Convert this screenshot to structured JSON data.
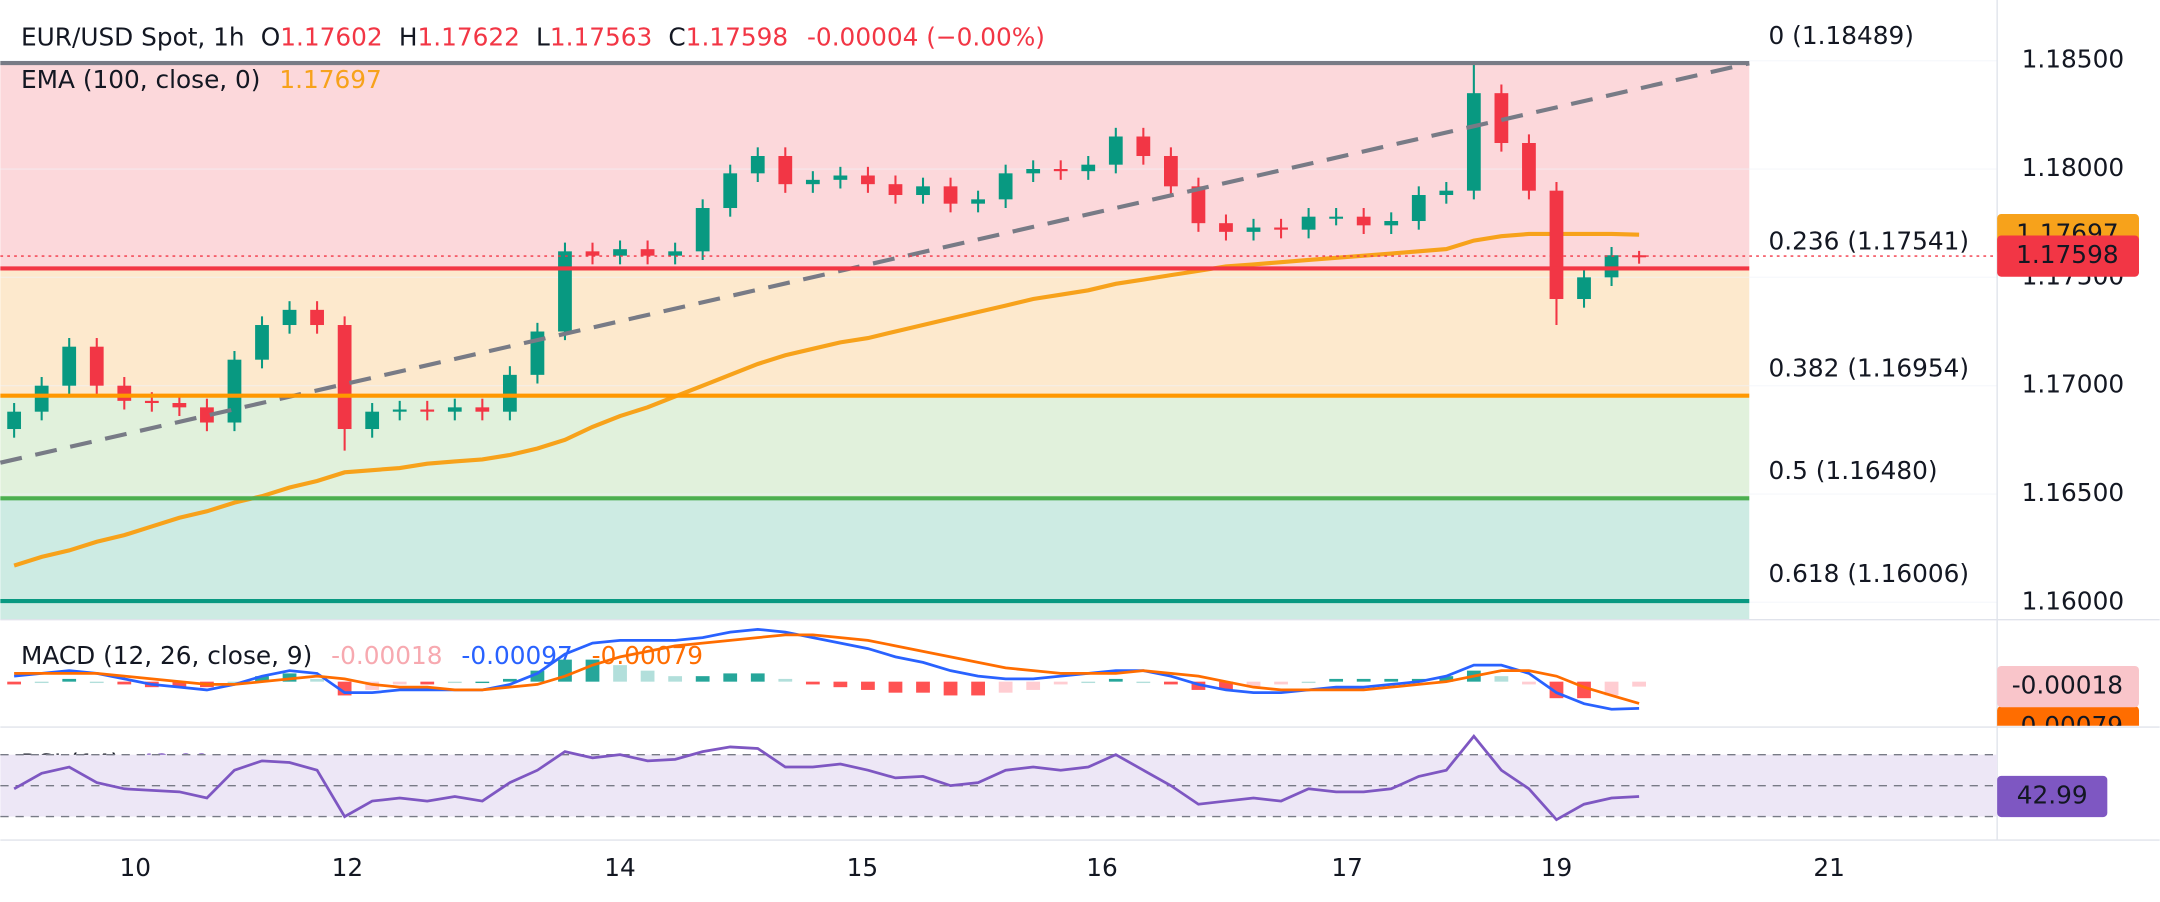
{
  "chart_data": {
    "type": "candlestick",
    "header": {
      "symbol": "EUR/USD Spot, 1h",
      "o": "O",
      "h": "H",
      "l": "L",
      "c": "C",
      "change": "-0.00004 (−0.00%)"
    },
    "xlim": [
      -0.5,
      72
    ],
    "xticks": [
      {
        "value": 4.4,
        "label": "10"
      },
      {
        "value": 12.1,
        "label": "12"
      },
      {
        "value": 22,
        "label": "14"
      },
      {
        "value": 30.8,
        "label": "15"
      },
      {
        "value": 39.5,
        "label": "16"
      },
      {
        "value": 48.4,
        "label": "17"
      },
      {
        "value": 56,
        "label": "19"
      },
      {
        "value": 65.9,
        "label": "21"
      }
    ],
    "ylim": [
      1.1592,
      1.1878
    ],
    "yticks": [
      {
        "value": 1.16,
        "label": "1.16000"
      },
      {
        "value": 1.165,
        "label": "1.16500"
      },
      {
        "value": 1.17,
        "label": "1.17000"
      },
      {
        "value": 1.175,
        "label": "1.17500"
      },
      {
        "value": 1.18,
        "label": "1.18000"
      },
      {
        "value": 1.185,
        "label": "1.18500"
      }
    ],
    "up_color": "#089981",
    "down_color": "#f23645",
    "open": [
      1.168,
      1.1688,
      1.17,
      1.1718,
      1.17,
      1.1693,
      1.1692,
      1.169,
      1.1683,
      1.1712,
      1.1728,
      1.1735,
      1.1728,
      1.168,
      1.1688,
      1.1689,
      1.1688,
      1.169,
      1.1688,
      1.1705,
      1.1725,
      1.1762,
      1.176,
      1.1763,
      1.176,
      1.1762,
      1.1782,
      1.1798,
      1.1806,
      1.1793,
      1.1795,
      1.1797,
      1.1793,
      1.1788,
      1.1792,
      1.1784,
      1.1786,
      1.1798,
      1.18,
      1.1799,
      1.1802,
      1.1815,
      1.1806,
      1.1792,
      1.1775,
      1.1771,
      1.1773,
      1.1772,
      1.1778,
      1.1778,
      1.1774,
      1.1776,
      1.1788,
      1.179,
      1.1835,
      1.1812,
      1.179,
      1.174,
      1.175,
      1.17602
    ],
    "high": [
      1.1692,
      1.1704,
      1.1722,
      1.1722,
      1.1704,
      1.1697,
      1.1696,
      1.1694,
      1.1716,
      1.1732,
      1.1739,
      1.1739,
      1.1732,
      1.1692,
      1.1693,
      1.1693,
      1.1694,
      1.1694,
      1.1709,
      1.1729,
      1.1766,
      1.1766,
      1.1767,
      1.1767,
      1.1766,
      1.1786,
      1.1802,
      1.181,
      1.181,
      1.1799,
      1.1801,
      1.1801,
      1.1797,
      1.1796,
      1.1796,
      1.179,
      1.1802,
      1.1804,
      1.1804,
      1.1806,
      1.1819,
      1.1819,
      1.181,
      1.1796,
      1.1779,
      1.1777,
      1.1777,
      1.1782,
      1.1782,
      1.1782,
      1.178,
      1.1792,
      1.1794,
      1.18489,
      1.1839,
      1.1816,
      1.1794,
      1.1754,
      1.1764,
      1.17622
    ],
    "low": [
      1.1676,
      1.1684,
      1.1696,
      1.1696,
      1.1689,
      1.1688,
      1.1686,
      1.1679,
      1.1679,
      1.1708,
      1.1724,
      1.1724,
      1.167,
      1.1676,
      1.1684,
      1.1684,
      1.1684,
      1.1684,
      1.1684,
      1.1701,
      1.1721,
      1.1756,
      1.1756,
      1.1756,
      1.1756,
      1.1758,
      1.1778,
      1.1794,
      1.1789,
      1.1789,
      1.1791,
      1.1789,
      1.1784,
      1.1784,
      1.178,
      1.178,
      1.1782,
      1.1794,
      1.1795,
      1.1795,
      1.1798,
      1.1802,
      1.1788,
      1.1771,
      1.1767,
      1.1767,
      1.1768,
      1.1768,
      1.1774,
      1.177,
      1.177,
      1.1772,
      1.1784,
      1.1786,
      1.1808,
      1.1786,
      1.1728,
      1.1736,
      1.1746,
      1.17563
    ],
    "close": [
      1.1688,
      1.17,
      1.1718,
      1.17,
      1.1693,
      1.1692,
      1.169,
      1.1683,
      1.1712,
      1.1728,
      1.1735,
      1.1728,
      1.168,
      1.1688,
      1.1689,
      1.1688,
      1.169,
      1.1688,
      1.1705,
      1.1725,
      1.1762,
      1.176,
      1.1763,
      1.176,
      1.1762,
      1.1782,
      1.1798,
      1.1806,
      1.1793,
      1.1795,
      1.1797,
      1.1793,
      1.1788,
      1.1792,
      1.1784,
      1.1786,
      1.1798,
      1.18,
      1.1799,
      1.1802,
      1.1815,
      1.1806,
      1.1792,
      1.1775,
      1.1771,
      1.1773,
      1.1772,
      1.1778,
      1.1778,
      1.1774,
      1.1776,
      1.1788,
      1.179,
      1.1835,
      1.1812,
      1.179,
      1.174,
      1.175,
      1.17602,
      1.17598
    ],
    "ema": {
      "name": "EMA (100, close, 0)",
      "color": "#f7a21b",
      "values": [
        1.1617,
        1.1621,
        1.1624,
        1.1628,
        1.1631,
        1.1635,
        1.1639,
        1.1642,
        1.1646,
        1.1649,
        1.1653,
        1.1656,
        1.166,
        1.1661,
        1.1662,
        1.1664,
        1.1665,
        1.1666,
        1.1668,
        1.1671,
        1.1675,
        1.1681,
        1.1686,
        1.169,
        1.1695,
        1.17,
        1.1705,
        1.171,
        1.1714,
        1.1717,
        1.172,
        1.1722,
        1.1725,
        1.1728,
        1.1731,
        1.1734,
        1.1737,
        1.174,
        1.1742,
        1.1744,
        1.1747,
        1.1749,
        1.1751,
        1.1753,
        1.1755,
        1.1756,
        1.1757,
        1.1758,
        1.1759,
        1.176,
        1.1761,
        1.1762,
        1.1763,
        1.1767,
        1.1769,
        1.177,
        1.177,
        1.177,
        1.177,
        1.17697
      ]
    },
    "fib": [
      {
        "label": "0 (1.18489)",
        "value": 1.18489,
        "color": "#787b86",
        "fill": "#fcd8db"
      },
      {
        "label": "0.236 (1.17541)",
        "value": 1.17541,
        "color": "#f23645",
        "fill": "#fde9cd"
      },
      {
        "label": "0.382 (1.16954)",
        "value": 1.16954,
        "color": "#ff9800",
        "fill": "#e1f1dc"
      },
      {
        "label": "0.5 (1.16480)",
        "value": 1.1648,
        "color": "#4caf50",
        "fill": "#cdebe3"
      },
      {
        "label": "0.618 (1.16006)",
        "value": 1.16006,
        "color": "#089981",
        "fill": "#cdebe3"
      }
    ],
    "macd": {
      "label": "MACD (12, 26, close, 9)",
      "ylim": [
        -0.0015,
        0.002
      ],
      "hist": {
        "values": [
          -0.0001,
          0,
          0.0001,
          0,
          -0.0001,
          -0.0002,
          -0.0002,
          -0.0002,
          0,
          0.0002,
          0.0003,
          0.0001,
          -0.0005,
          -0.0003,
          -0.0001,
          -0.0001,
          0,
          0,
          0.0001,
          0.0004,
          0.0008,
          0.0008,
          0.0006,
          0.0004,
          0.0002,
          0.0002,
          0.0003,
          0.0003,
          0.0001,
          -0.0001,
          -0.0002,
          -0.0003,
          -0.0004,
          -0.0004,
          -0.0005,
          -0.0005,
          -0.0004,
          -0.0003,
          -0.0001,
          0,
          0.0001,
          0,
          -0.0001,
          -0.0003,
          -0.0003,
          -0.0002,
          -0.0001,
          0,
          0.0001,
          0.0001,
          0.0001,
          0.0001,
          0.0002,
          0.0004,
          0.0002,
          -0.0001,
          -0.0006,
          -0.0006,
          -0.0005,
          -0.00018
        ]
      },
      "macd": {
        "color": "#2962ff",
        "values": [
          0.0002,
          0.0003,
          0.0004,
          0.0003,
          0.0001,
          -0.0001,
          -0.0002,
          -0.0003,
          -0.0001,
          0.0002,
          0.0004,
          0.0003,
          -0.0004,
          -0.0004,
          -0.0003,
          -0.0003,
          -0.0003,
          -0.0003,
          -0.0001,
          0.0003,
          0.001,
          0.0014,
          0.0015,
          0.0015,
          0.0015,
          0.0016,
          0.0018,
          0.0019,
          0.0018,
          0.0016,
          0.0014,
          0.0012,
          0.0009,
          0.0007,
          0.0004,
          0.0002,
          0.0001,
          0.0001,
          0.0002,
          0.0003,
          0.0004,
          0.0004,
          0.0002,
          -0.0001,
          -0.0003,
          -0.0004,
          -0.0004,
          -0.0003,
          -0.0002,
          -0.0002,
          -0.0001,
          0,
          0.0002,
          0.0006,
          0.0006,
          0.0003,
          -0.0004,
          -0.0008,
          -0.001,
          -0.00097
        ]
      },
      "signal": {
        "color": "#ff6d00",
        "values": [
          0.0003,
          0.0003,
          0.0003,
          0.0003,
          0.0002,
          0.0001,
          0,
          -0.0001,
          -0.0001,
          0,
          0.0001,
          0.0002,
          0.0001,
          -0.0001,
          -0.0002,
          -0.0002,
          -0.0003,
          -0.0003,
          -0.0002,
          -0.0001,
          0.0002,
          0.0006,
          0.0009,
          0.0011,
          0.0013,
          0.0014,
          0.0015,
          0.0016,
          0.0017,
          0.0017,
          0.0016,
          0.0015,
          0.0013,
          0.0011,
          0.0009,
          0.0007,
          0.0005,
          0.0004,
          0.0003,
          0.0003,
          0.0003,
          0.0004,
          0.0003,
          0.0002,
          0,
          -0.0002,
          -0.0003,
          -0.0003,
          -0.0003,
          -0.0003,
          -0.0002,
          -0.0001,
          0,
          0.0002,
          0.0004,
          0.0004,
          0.0002,
          -0.0002,
          -0.0005,
          -0.00079
        ]
      }
    },
    "rsi": {
      "label": "RSI (14)",
      "color": "#7e57c2",
      "ylim": [
        19.3,
        81.6
      ],
      "levels": [
        70,
        50,
        30
      ],
      "values": [
        48,
        58,
        62,
        52,
        48,
        47,
        46,
        42,
        60,
        66,
        65,
        60,
        30,
        40,
        42,
        40,
        43,
        40,
        52,
        60,
        72,
        68,
        70,
        66,
        67,
        72,
        75,
        74,
        62,
        62,
        64,
        60,
        55,
        56,
        50,
        52,
        60,
        62,
        60,
        62,
        70,
        60,
        50,
        38,
        40,
        42,
        40,
        48,
        46,
        46,
        48,
        56,
        60,
        82,
        60,
        48,
        28,
        38,
        42,
        42.99
      ]
    }
  }
}
